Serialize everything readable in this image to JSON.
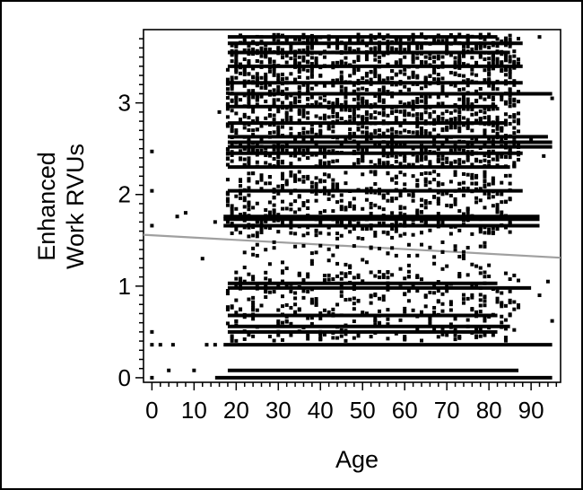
{
  "chart_data": {
    "type": "scatter",
    "title": "",
    "xlabel": "Age",
    "ylabel_lines": [
      "Enhanced",
      "Work RVUs"
    ],
    "xlim": [
      -2,
      97
    ],
    "ylim": [
      -0.05,
      3.8
    ],
    "x_ticks": [
      0,
      10,
      20,
      30,
      40,
      50,
      60,
      70,
      80,
      90
    ],
    "x_tick_labels": [
      "0",
      "10",
      "20",
      "30",
      "40",
      "50",
      "60",
      "70",
      "80",
      "90"
    ],
    "y_ticks": [
      0,
      1,
      2,
      3
    ],
    "y_tick_labels": [
      "0",
      "1",
      "2",
      "3"
    ],
    "grid": false,
    "legend": "none",
    "point_color": "#000000",
    "fit_line": {
      "x": [
        -2,
        97
      ],
      "y": [
        1.56,
        1.31
      ],
      "color": "#a0a0a0"
    },
    "dense_bands": [
      {
        "y": 0.0,
        "x_range": [
          15,
          95
        ]
      },
      {
        "y": 0.08,
        "x_range": [
          18,
          87
        ]
      },
      {
        "y": 0.36,
        "x_range": [
          17,
          95
        ]
      },
      {
        "y": 0.5,
        "x_range": [
          18,
          82
        ]
      },
      {
        "y": 0.56,
        "x_range": [
          18,
          85
        ]
      },
      {
        "y": 0.68,
        "x_range": [
          18,
          82
        ]
      },
      {
        "y": 0.98,
        "x_range": [
          18,
          90
        ]
      },
      {
        "y": 1.03,
        "x_range": [
          18,
          82
        ]
      },
      {
        "y": 1.66,
        "x_range": [
          17,
          92
        ]
      },
      {
        "y": 1.73,
        "x_range": [
          17,
          92
        ]
      },
      {
        "y": 1.76,
        "x_range": [
          17,
          92
        ]
      },
      {
        "y": 2.04,
        "x_range": [
          18,
          88
        ]
      },
      {
        "y": 2.3,
        "x_range": [
          18,
          85
        ]
      },
      {
        "y": 2.45,
        "x_range": [
          18,
          88
        ]
      },
      {
        "y": 2.52,
        "x_range": [
          18,
          95
        ]
      },
      {
        "y": 2.57,
        "x_range": [
          18,
          95
        ]
      },
      {
        "y": 2.63,
        "x_range": [
          18,
          94
        ]
      },
      {
        "y": 2.78,
        "x_range": [
          18,
          84
        ]
      },
      {
        "y": 2.96,
        "x_range": [
          18,
          82
        ]
      },
      {
        "y": 3.1,
        "x_range": [
          18,
          95
        ]
      },
      {
        "y": 3.22,
        "x_range": [
          18,
          88
        ]
      },
      {
        "y": 3.4,
        "x_range": [
          18,
          88
        ]
      },
      {
        "y": 3.55,
        "x_range": [
          18,
          85
        ]
      },
      {
        "y": 3.65,
        "x_range": [
          18,
          88
        ]
      },
      {
        "y": 3.72,
        "x_range": [
          18,
          82
        ]
      }
    ],
    "sparse_points": [
      {
        "x": 0,
        "y": 2.47
      },
      {
        "x": 0,
        "y": 2.04
      },
      {
        "x": 0,
        "y": 1.66
      },
      {
        "x": 0,
        "y": 0.5
      },
      {
        "x": 0,
        "y": 0.36
      },
      {
        "x": 0,
        "y": 0.0
      },
      {
        "x": 2,
        "y": 0.36
      },
      {
        "x": 4,
        "y": 0.08
      },
      {
        "x": 5,
        "y": 0.36
      },
      {
        "x": 6,
        "y": 1.76
      },
      {
        "x": 8,
        "y": 1.8
      },
      {
        "x": 10,
        "y": 0.08
      },
      {
        "x": 12,
        "y": 1.3
      },
      {
        "x": 13,
        "y": 0.36
      },
      {
        "x": 15,
        "y": 1.7
      },
      {
        "x": 15,
        "y": 0.36
      },
      {
        "x": 16,
        "y": 2.9
      },
      {
        "x": 92,
        "y": 0.9
      },
      {
        "x": 94,
        "y": 1.05
      },
      {
        "x": 95,
        "y": 0.62
      },
      {
        "x": 95,
        "y": 3.05
      },
      {
        "x": 92,
        "y": 3.72
      },
      {
        "x": 90,
        "y": 2.6
      },
      {
        "x": 93,
        "y": 2.42
      }
    ]
  }
}
